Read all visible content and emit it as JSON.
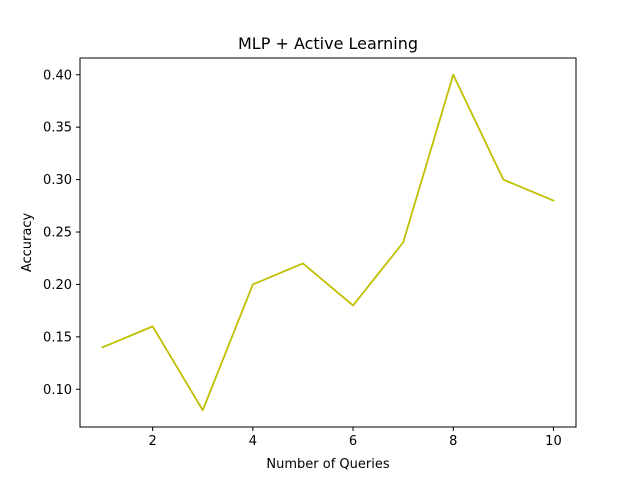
{
  "chart_data": {
    "type": "line",
    "title": "MLP + Active Learning",
    "xlabel": "Number of Queries",
    "ylabel": "Accuracy",
    "x": [
      1,
      2,
      3,
      4,
      5,
      6,
      7,
      8,
      9,
      10
    ],
    "series": [
      {
        "values": [
          0.14,
          0.16,
          0.08,
          0.2,
          0.22,
          0.18,
          0.24,
          0.4,
          0.3,
          0.28
        ],
        "color": "#bfbf00"
      }
    ],
    "xlim": [
      0.55,
      10.45
    ],
    "ylim": [
      0.064,
      0.416
    ],
    "xticks": [
      2,
      4,
      6,
      8,
      10
    ],
    "xtick_labels": [
      "2",
      "4",
      "6",
      "8",
      "10"
    ],
    "yticks": [
      0.1,
      0.15,
      0.2,
      0.25,
      0.3,
      0.35,
      0.4
    ],
    "ytick_labels": [
      "0.10",
      "0.15",
      "0.20",
      "0.25",
      "0.30",
      "0.35",
      "0.40"
    ],
    "grid": false,
    "legend": false
  }
}
